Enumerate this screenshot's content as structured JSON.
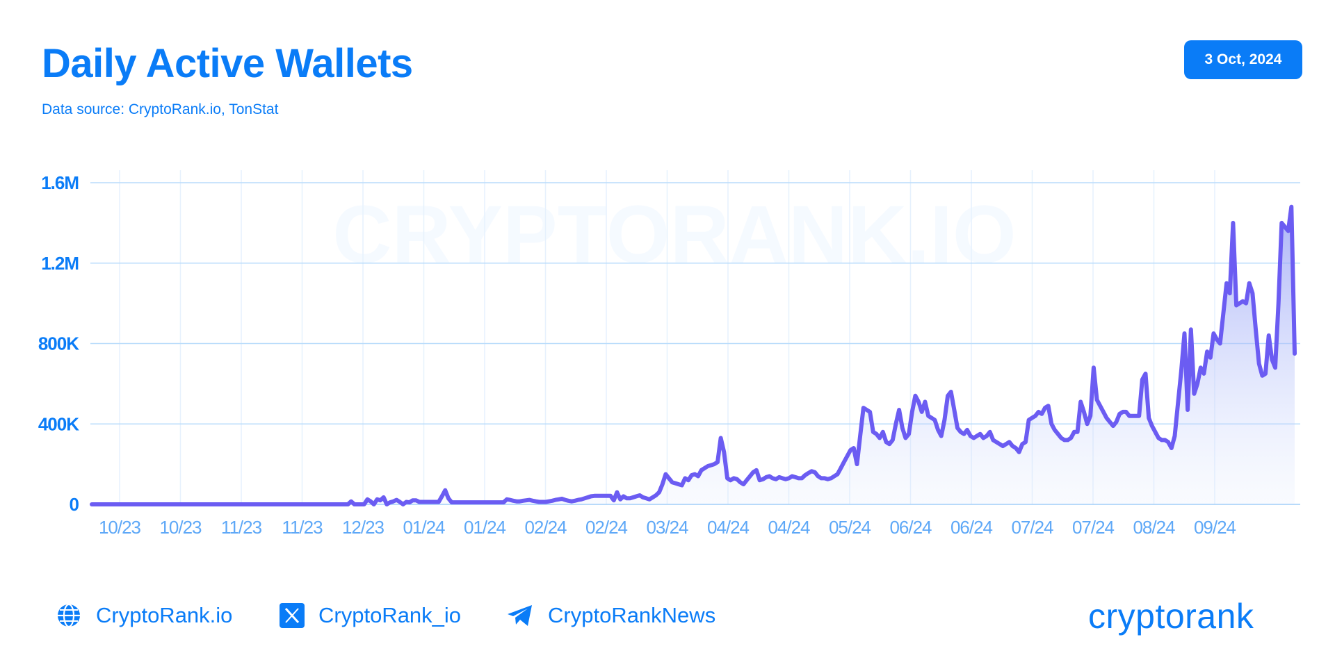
{
  "header": {
    "title": "Daily Active Wallets",
    "subtitle": "Data source: CryptoRank.io, TonStat",
    "date_badge": "3 Oct, 2024"
  },
  "watermark": "CRYPTORANK.IO",
  "footer": {
    "website": "CryptoRank.io",
    "twitter": "CryptoRank_io",
    "telegram": "CryptoRankNews",
    "brand": "cryptorank"
  },
  "colors": {
    "accent": "#0a7cf7",
    "line": "#6b5cf2",
    "area_top": "#8f99f5",
    "grid": "#b9dcfb"
  },
  "chart_data": {
    "type": "area",
    "title": "Daily Active Wallets",
    "xlabel": "",
    "ylabel": "",
    "ylim": [
      0,
      1600000
    ],
    "y_ticks": [
      {
        "value": 0,
        "label": "0"
      },
      {
        "value": 400000,
        "label": "400K"
      },
      {
        "value": 800000,
        "label": "800K"
      },
      {
        "value": 1200000,
        "label": "1.2M"
      },
      {
        "value": 1600000,
        "label": "1.6M"
      }
    ],
    "x_ticks": [
      "10/23",
      "10/23",
      "11/23",
      "11/23",
      "12/23",
      "01/24",
      "01/24",
      "02/24",
      "02/24",
      "03/24",
      "04/24",
      "04/24",
      "05/24",
      "06/24",
      "06/24",
      "07/24",
      "07/24",
      "08/24",
      "09/24"
    ],
    "grid": true,
    "legend": "none",
    "series": [
      {
        "values": [
          0,
          0,
          0,
          0,
          0,
          0,
          0,
          0,
          0,
          0,
          0,
          0,
          0,
          0,
          0,
          0,
          0,
          0,
          0,
          0,
          0,
          0,
          0,
          0,
          0,
          0,
          0,
          0,
          0,
          0,
          0,
          0,
          0,
          0,
          0,
          0,
          0,
          0,
          0,
          0,
          0,
          0,
          0,
          0,
          0,
          0,
          0,
          0,
          0,
          0,
          0,
          0,
          0,
          0,
          0,
          0,
          0,
          0,
          0,
          0,
          0,
          0,
          0,
          0,
          0,
          0,
          0,
          0,
          0,
          0,
          0,
          0,
          0,
          0,
          0,
          0,
          0,
          0,
          0,
          0,
          15000,
          0,
          0,
          0,
          0,
          25000,
          15000,
          0,
          25000,
          20000,
          35000,
          0,
          10000,
          15000,
          22000,
          12000,
          0,
          12000,
          10000,
          20000,
          20000,
          12000,
          12000,
          12000,
          12000,
          12000,
          12000,
          12000,
          40000,
          70000,
          30000,
          10000,
          10000,
          10000,
          10000,
          10000,
          10000,
          10000,
          10000,
          10000,
          10000,
          10000,
          10000,
          10000,
          10000,
          10000,
          10000,
          10000,
          25000,
          22000,
          18000,
          15000,
          15000,
          18000,
          20000,
          22000,
          18000,
          15000,
          12000,
          12000,
          12000,
          15000,
          18000,
          22000,
          25000,
          28000,
          22000,
          18000,
          15000,
          18000,
          22000,
          25000,
          30000,
          35000,
          40000,
          42000,
          42000,
          42000,
          42000,
          42000,
          42000,
          20000,
          60000,
          25000,
          40000,
          30000,
          30000,
          35000,
          40000,
          45000,
          35000,
          30000,
          25000,
          35000,
          45000,
          60000,
          100000,
          150000,
          130000,
          110000,
          105000,
          100000,
          95000,
          130000,
          120000,
          145000,
          150000,
          140000,
          170000,
          180000,
          190000,
          195000,
          200000,
          210000,
          330000,
          260000,
          130000,
          120000,
          130000,
          125000,
          110000,
          100000,
          120000,
          140000,
          160000,
          170000,
          120000,
          125000,
          135000,
          140000,
          130000,
          125000,
          135000,
          130000,
          125000,
          130000,
          140000,
          135000,
          130000,
          130000,
          145000,
          155000,
          165000,
          160000,
          140000,
          130000,
          130000,
          125000,
          130000,
          140000,
          150000,
          180000,
          210000,
          240000,
          270000,
          280000,
          200000,
          340000,
          480000,
          470000,
          460000,
          360000,
          350000,
          330000,
          360000,
          310000,
          300000,
          320000,
          400000,
          470000,
          380000,
          330000,
          350000,
          460000,
          540000,
          510000,
          460000,
          510000,
          440000,
          430000,
          420000,
          370000,
          340000,
          420000,
          540000,
          560000,
          470000,
          380000,
          360000,
          350000,
          370000,
          340000,
          330000,
          340000,
          350000,
          330000,
          340000,
          360000,
          320000,
          310000,
          300000,
          290000,
          300000,
          310000,
          290000,
          280000,
          260000,
          300000,
          310000,
          420000,
          430000,
          440000,
          460000,
          450000,
          480000,
          490000,
          400000,
          370000,
          350000,
          330000,
          320000,
          320000,
          330000,
          360000,
          360000,
          510000,
          460000,
          400000,
          440000,
          680000,
          520000,
          490000,
          460000,
          430000,
          410000,
          390000,
          410000,
          450000,
          460000,
          460000,
          440000,
          440000,
          440000,
          440000,
          620000,
          650000,
          430000,
          390000,
          360000,
          330000,
          320000,
          320000,
          310000,
          280000,
          340000,
          500000,
          660000,
          850000,
          470000,
          870000,
          550000,
          600000,
          680000,
          650000,
          760000,
          730000,
          850000,
          820000,
          800000,
          950000,
          1100000,
          1050000,
          1400000,
          990000,
          1000000,
          1010000,
          1000000,
          1100000,
          1050000,
          870000,
          700000,
          640000,
          650000,
          840000,
          720000,
          680000,
          1000000,
          1400000,
          1380000,
          1360000,
          1480000,
          750000
        ]
      }
    ]
  }
}
